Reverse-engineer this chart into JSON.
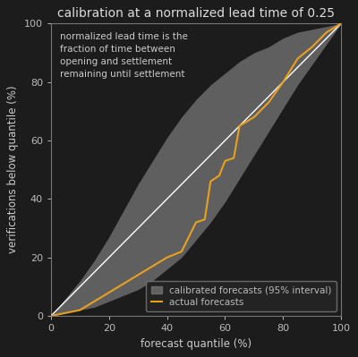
{
  "title": "calibration at a normalized lead time of 0.25",
  "xlabel": "forecast quantile (%)",
  "ylabel": "verifications below quantile (%)",
  "annotation": "normalized lead time is the\nfraction of time between\nopening and settlement\nremaining until settlement",
  "bg_color": "#1c1c1c",
  "plot_bg_color": "#1c1c1c",
  "spine_color": "#777777",
  "tick_color": "#bbbbbb",
  "label_color": "#cccccc",
  "title_color": "#dddddd",
  "diagonal_color": "#ffffff",
  "band_color": "#777777",
  "line_color": "#e8a020",
  "xlim": [
    0,
    100
  ],
  "ylim": [
    0,
    100
  ],
  "xticks": [
    0,
    20,
    40,
    60,
    80,
    100
  ],
  "yticks": [
    0,
    20,
    40,
    60,
    80,
    100
  ],
  "band_upper_x": [
    0,
    5,
    10,
    15,
    20,
    25,
    30,
    35,
    40,
    45,
    50,
    55,
    60,
    65,
    70,
    75,
    80,
    85,
    90,
    95,
    100
  ],
  "band_upper_y": [
    0,
    6,
    12,
    19,
    27,
    36,
    45,
    53,
    61,
    68,
    74,
    79,
    83,
    87,
    90,
    92,
    95,
    97,
    98,
    99,
    100
  ],
  "band_lower_x": [
    0,
    5,
    10,
    15,
    20,
    25,
    30,
    35,
    40,
    45,
    50,
    55,
    60,
    65,
    70,
    75,
    80,
    85,
    90,
    95,
    100
  ],
  "band_lower_y": [
    0,
    1,
    2,
    3,
    5,
    7,
    9,
    12,
    16,
    20,
    26,
    32,
    39,
    47,
    55,
    63,
    71,
    79,
    86,
    93,
    100
  ],
  "actual_x": [
    0,
    10,
    20,
    30,
    40,
    45,
    50,
    53,
    55,
    58,
    60,
    63,
    65,
    70,
    75,
    80,
    85,
    90,
    95,
    100
  ],
  "actual_y": [
    0,
    2,
    8,
    14,
    20,
    22,
    32,
    33,
    46,
    48,
    53,
    54,
    65,
    68,
    73,
    80,
    88,
    92,
    97,
    100
  ],
  "legend_label_band": "calibrated forecasts (95% interval)",
  "legend_label_line": "actual forecasts",
  "annotation_fontsize": 7.5,
  "title_fontsize": 10,
  "axis_label_fontsize": 8.5,
  "tick_fontsize": 8,
  "legend_fontsize": 7.5
}
